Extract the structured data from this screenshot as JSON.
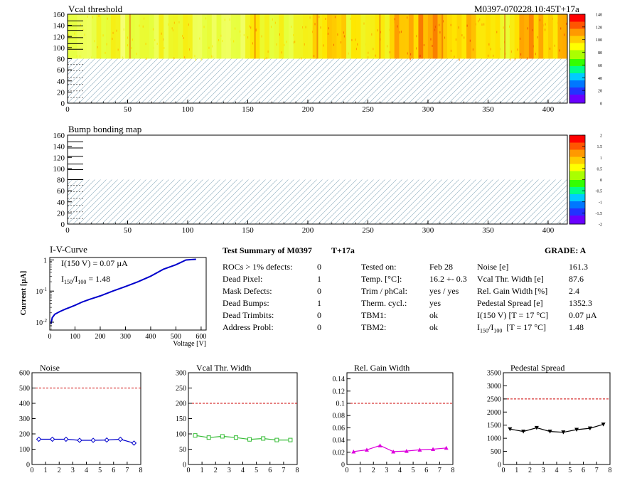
{
  "header": {
    "map_title": "Vcal threshold",
    "module_id": "M0397-070228.10:45T+17a",
    "bump_title": "Bump bonding map"
  },
  "maps": {
    "x_ticks": [
      "0",
      "50",
      "100",
      "150",
      "200",
      "250",
      "300",
      "350",
      "400"
    ],
    "y_ticks": [
      "0",
      "20",
      "40",
      "60",
      "80",
      "100",
      "120",
      "140",
      "160"
    ],
    "vcal_palette_ticks": [
      "0",
      "20",
      "40",
      "60",
      "80",
      "100",
      "120",
      "140"
    ],
    "bump_palette_ticks": [
      "-2",
      "-1.5",
      "-1",
      "-0.5",
      "0",
      "0.5",
      "1",
      "1.5",
      "2"
    ],
    "palette_colors": [
      "#6a00ff",
      "#2233ff",
      "#0077ff",
      "#00ccff",
      "#00ff88",
      "#33ff00",
      "#aaff00",
      "#ffff00",
      "#ffcc00",
      "#ff9900",
      "#ff5500",
      "#ff0000"
    ]
  },
  "iv": {
    "title": "I-V-Curve",
    "ylabel": "Current [µA]",
    "xlabel": "Voltage [V]",
    "i150": "I(150 V) = 0.07 µA",
    "ratio_label": "I",
    "ratio_sub1": "150",
    "ratio_sep": "/I",
    "ratio_sub2": "100",
    "ratio_value": " =  1.48",
    "x_ticks": [
      "0",
      "100",
      "200",
      "300",
      "400",
      "500",
      "600"
    ],
    "y_ticks": [
      "10",
      "10",
      "1"
    ],
    "y_exps": [
      "-2",
      "-1",
      ""
    ],
    "line_color": "#0000cc"
  },
  "summary": {
    "title": "Test Summary of M0397",
    "tag": "T+17a",
    "grade": "GRADE:  A",
    "col1": [
      {
        "label": "ROCs > 1% defects:",
        "value": "0"
      },
      {
        "label": "Dead Pixel:",
        "value": "1"
      },
      {
        "label": "Mask Defects:",
        "value": "0"
      },
      {
        "label": "Dead Bumps:",
        "value": "1"
      },
      {
        "label": "Dead Trimbits:",
        "value": "0"
      },
      {
        "label": "Address Probl:",
        "value": "0"
      }
    ],
    "col2": [
      {
        "label": "Tested on:",
        "value": "Feb 28"
      },
      {
        "label": "Temp. [°C]:",
        "value": "16.2 +- 0.3"
      },
      {
        "label": "Trim / phCal:",
        "value": "yes / yes"
      },
      {
        "label": "Therm. cycl.:",
        "value": "yes"
      },
      {
        "label": "TBM1:",
        "value": "ok"
      },
      {
        "label": "TBM2:",
        "value": "ok"
      }
    ],
    "col3": [
      {
        "label": "Noise [e]",
        "value": "161.3"
      },
      {
        "label": "Vcal Thr. Width [e]",
        "value": "87.6"
      },
      {
        "label": "Rel. Gain Width [%]",
        "value": "2.4"
      },
      {
        "label": "Pedestal Spread [e]",
        "value": "1352.3"
      },
      {
        "label": "I(150 V) [T = 17 °C]",
        "value": "0.07 µA"
      }
    ],
    "ratio_row": {
      "label": "I",
      "sub1": "150",
      "sep": "/I",
      "sub2": "100",
      "rest": "  [T = 17 °C]",
      "value": "1.48"
    }
  },
  "chart_data": [
    {
      "type": "heatmap",
      "title": "Vcal threshold",
      "x_range": [
        0,
        416
      ],
      "y_range": [
        0,
        160
      ],
      "z_range": [
        0,
        140
      ],
      "filled_rows": [
        80,
        160
      ],
      "column_mean": [
        95,
        100,
        92,
        98,
        106,
        96,
        90,
        104,
        100,
        108,
        112,
        104,
        108,
        118,
        122,
        116,
        110,
        104,
        120,
        116
      ],
      "note_rows_below_80": "hatched (no data)"
    },
    {
      "type": "heatmap",
      "title": "Bump bonding map",
      "x_range": [
        0,
        416
      ],
      "y_range": [
        0,
        160
      ],
      "z_range": [
        -2,
        2
      ]
    },
    {
      "type": "line",
      "title": "I-V-Curve",
      "xlabel": "Voltage [V]",
      "ylabel": "Current [µA]",
      "xlim": [
        0,
        620
      ],
      "ylim_log": [
        0.0056,
        1.2
      ],
      "x": [
        5,
        10,
        20,
        40,
        60,
        80,
        100,
        130,
        160,
        200,
        250,
        300,
        350,
        400,
        450,
        500,
        540,
        580
      ],
      "y": [
        0.009,
        0.014,
        0.018,
        0.022,
        0.026,
        0.03,
        0.035,
        0.045,
        0.055,
        0.07,
        0.1,
        0.14,
        0.2,
        0.3,
        0.5,
        0.7,
        1.0,
        1.05
      ]
    },
    {
      "type": "line",
      "title": "Noise",
      "x": [
        0.5,
        1.5,
        2.5,
        3.5,
        4.5,
        5.5,
        6.5,
        7.5
      ],
      "values": [
        165,
        165,
        165,
        158,
        158,
        160,
        165,
        140
      ],
      "ylim": [
        0,
        600
      ],
      "xlim": [
        0,
        8
      ],
      "threshold": 500,
      "line_color": "#0000cc",
      "marker": "diamond",
      "y_ticks": [
        "0",
        "100",
        "200",
        "300",
        "400",
        "500",
        "600"
      ]
    },
    {
      "type": "line",
      "title": "Vcal Thr. Width",
      "x": [
        0.5,
        1.5,
        2.5,
        3.5,
        4.5,
        5.5,
        6.5,
        7.5
      ],
      "values": [
        95,
        88,
        92,
        88,
        82,
        85,
        80,
        80
      ],
      "ylim": [
        0,
        300
      ],
      "xlim": [
        0,
        8
      ],
      "threshold": 200,
      "line_color": "#33bb33",
      "marker": "square",
      "y_ticks": [
        "0",
        "50",
        "100",
        "150",
        "200",
        "250",
        "300"
      ]
    },
    {
      "type": "line",
      "title": "Rel. Gain Width",
      "x": [
        0.5,
        1.5,
        2.5,
        3.5,
        4.5,
        5.5,
        6.5,
        7.5
      ],
      "values": [
        0.021,
        0.024,
        0.031,
        0.021,
        0.022,
        0.024,
        0.025,
        0.027
      ],
      "ylim": [
        0,
        0.15
      ],
      "xlim": [
        0,
        8
      ],
      "threshold": 0.1,
      "line_color": "#dd00dd",
      "marker": "triangle-up",
      "y_ticks": [
        "0",
        "0.02",
        "0.04",
        "0.06",
        "0.08",
        "0.1",
        "0.12",
        "0.14"
      ]
    },
    {
      "type": "line",
      "title": "Pedestal Spread",
      "x": [
        0.5,
        1.5,
        2.5,
        3.5,
        4.5,
        5.5,
        6.5,
        7.5
      ],
      "values": [
        1350,
        1260,
        1400,
        1260,
        1230,
        1330,
        1380,
        1530
      ],
      "ylim": [
        0,
        3500
      ],
      "xlim": [
        0,
        8
      ],
      "threshold": 2500,
      "line_color": "#000000",
      "marker": "triangle-down",
      "y_ticks": [
        "0",
        "500",
        "1000",
        "1500",
        "2000",
        "2500",
        "3000",
        "3500"
      ]
    }
  ],
  "small_x_ticks": [
    "0",
    "1",
    "2",
    "3",
    "4",
    "5",
    "6",
    "7",
    "8"
  ]
}
